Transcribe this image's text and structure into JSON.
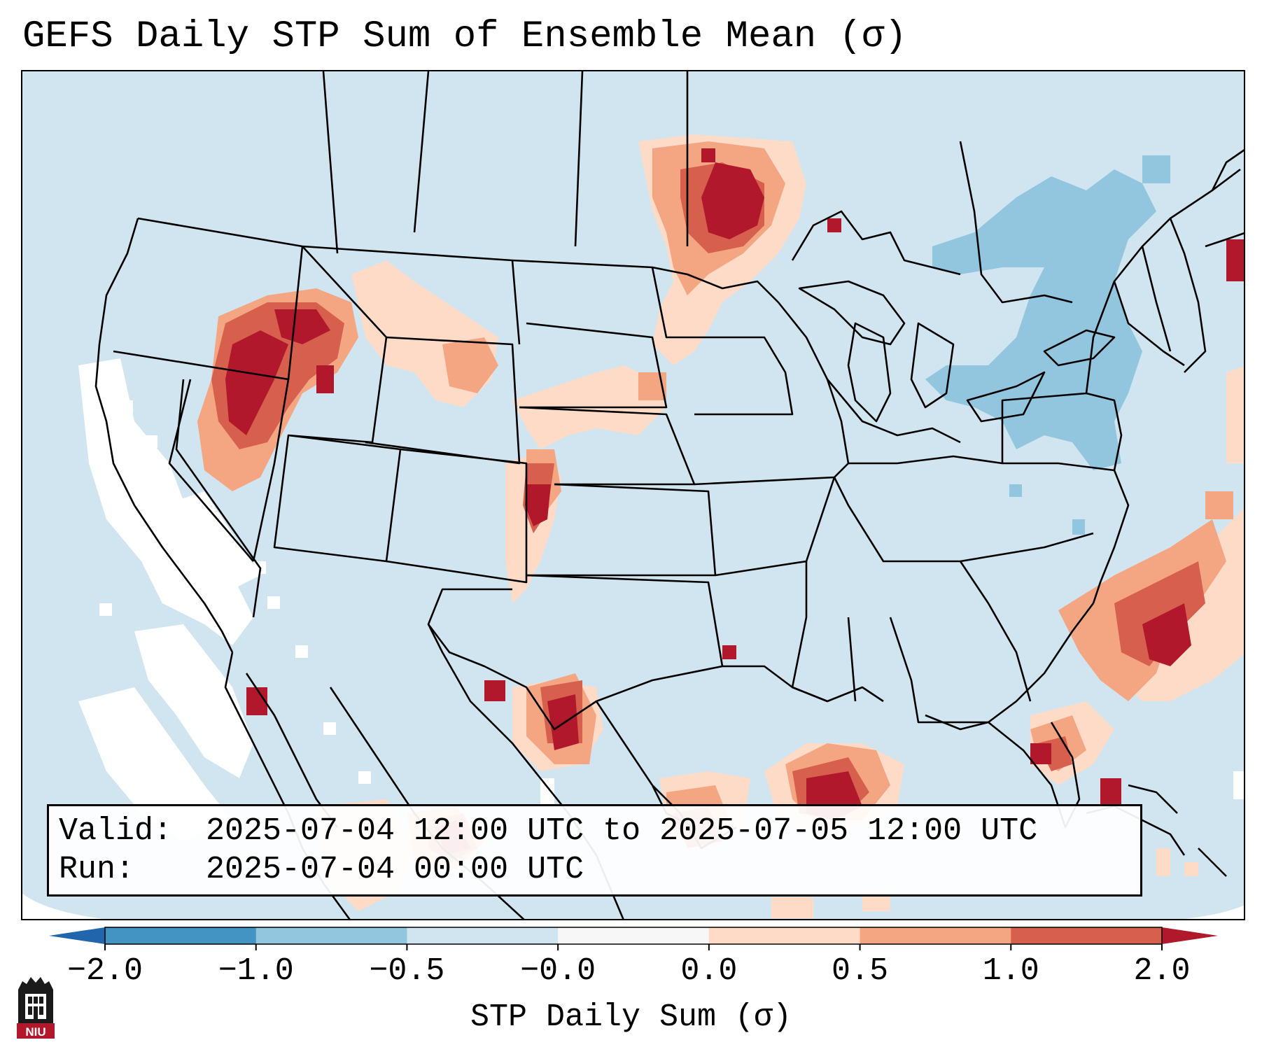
{
  "title": "GEFS Daily STP Sum of Ensemble Mean (σ)",
  "info": {
    "valid_label": "Valid:",
    "valid_value": "2025-07-04 12:00 UTC to 2025-07-05 12:00 UTC",
    "run_label": "Run:",
    "run_value": "2025-07-04 00:00 UTC"
  },
  "colorbar": {
    "label": "STP Daily Sum (σ)",
    "tick_labels": [
      "−2.0",
      "−1.0",
      "−0.5",
      "−0.0",
      "0.0",
      "0.5",
      "1.0",
      "2.0"
    ],
    "segment_colors": [
      "#4393c3",
      "#92c5de",
      "#d1e5f0",
      "#f7f7f7",
      "#fddbc7",
      "#f4a582",
      "#d6604d"
    ],
    "extend_low_color": "#2166ac",
    "extend_high_color": "#b2182b"
  },
  "colors": {
    "background_field": "#d1e5f0",
    "none": "#ffffff",
    "light_pos": "#fddbc7",
    "med_pos": "#f4a582",
    "strong_pos": "#d6604d",
    "extreme_pos": "#b2182b",
    "light_neg": "#92c5de"
  },
  "logo": {
    "text": "NIU",
    "name": "niu-logo"
  }
}
